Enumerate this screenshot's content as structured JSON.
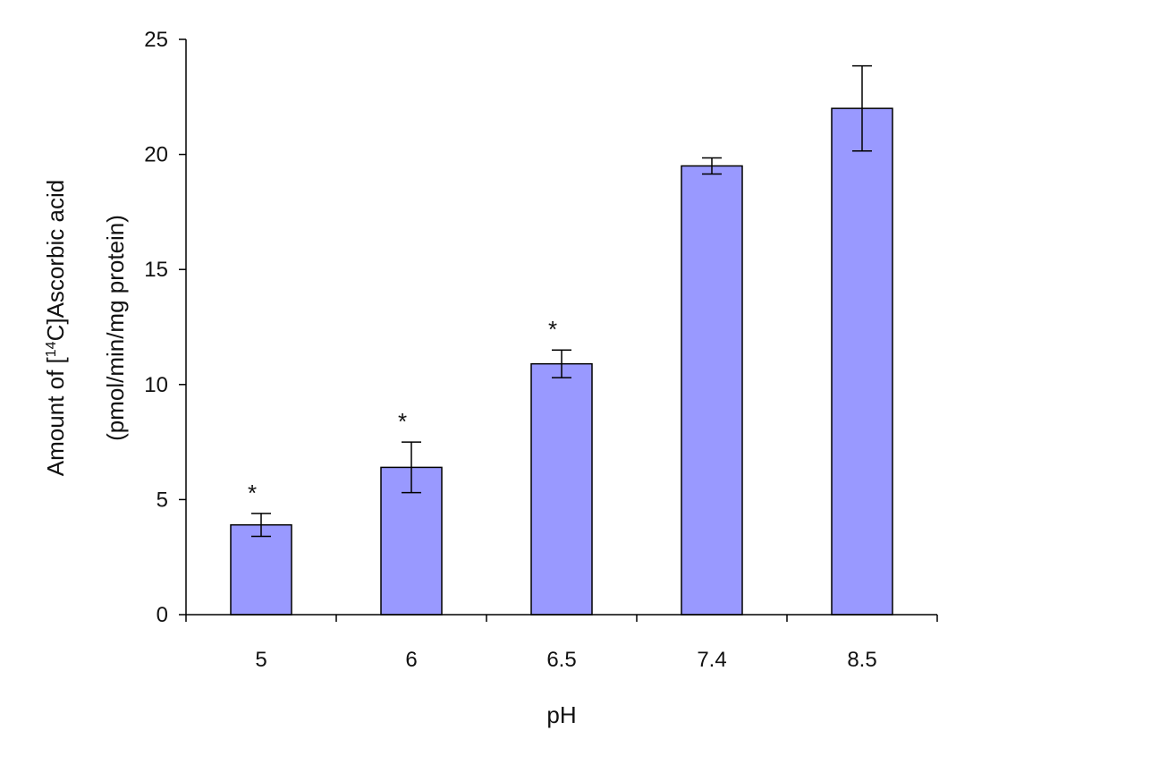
{
  "chart_data": {
    "type": "bar",
    "categories": [
      "5",
      "6",
      "6.5",
      "7.4",
      "8.5"
    ],
    "values": [
      3.9,
      6.4,
      10.9,
      19.5,
      22.0
    ],
    "errors": [
      0.5,
      1.1,
      0.6,
      0.35,
      1.85
    ],
    "markers": [
      "*",
      "*",
      "*",
      "",
      ""
    ],
    "xlabel": "pH",
    "ylabel_line1_pre": "Amount of [",
    "ylabel_sup": "14",
    "ylabel_line1_post": "C]Ascorbic acid",
    "ylabel_line2": "(pmol/min/mg protein)",
    "ylim": [
      0,
      25
    ],
    "yticks": [
      "0",
      "5",
      "10",
      "15",
      "20",
      "25"
    ],
    "ytick_values": [
      0,
      5,
      10,
      15,
      20,
      25
    ],
    "grid": false,
    "legend": "none",
    "colors": {
      "bar_fill": "#9999ff",
      "bar_stroke": "#000000",
      "axis": "#000000",
      "error_bar": "#000000"
    }
  }
}
